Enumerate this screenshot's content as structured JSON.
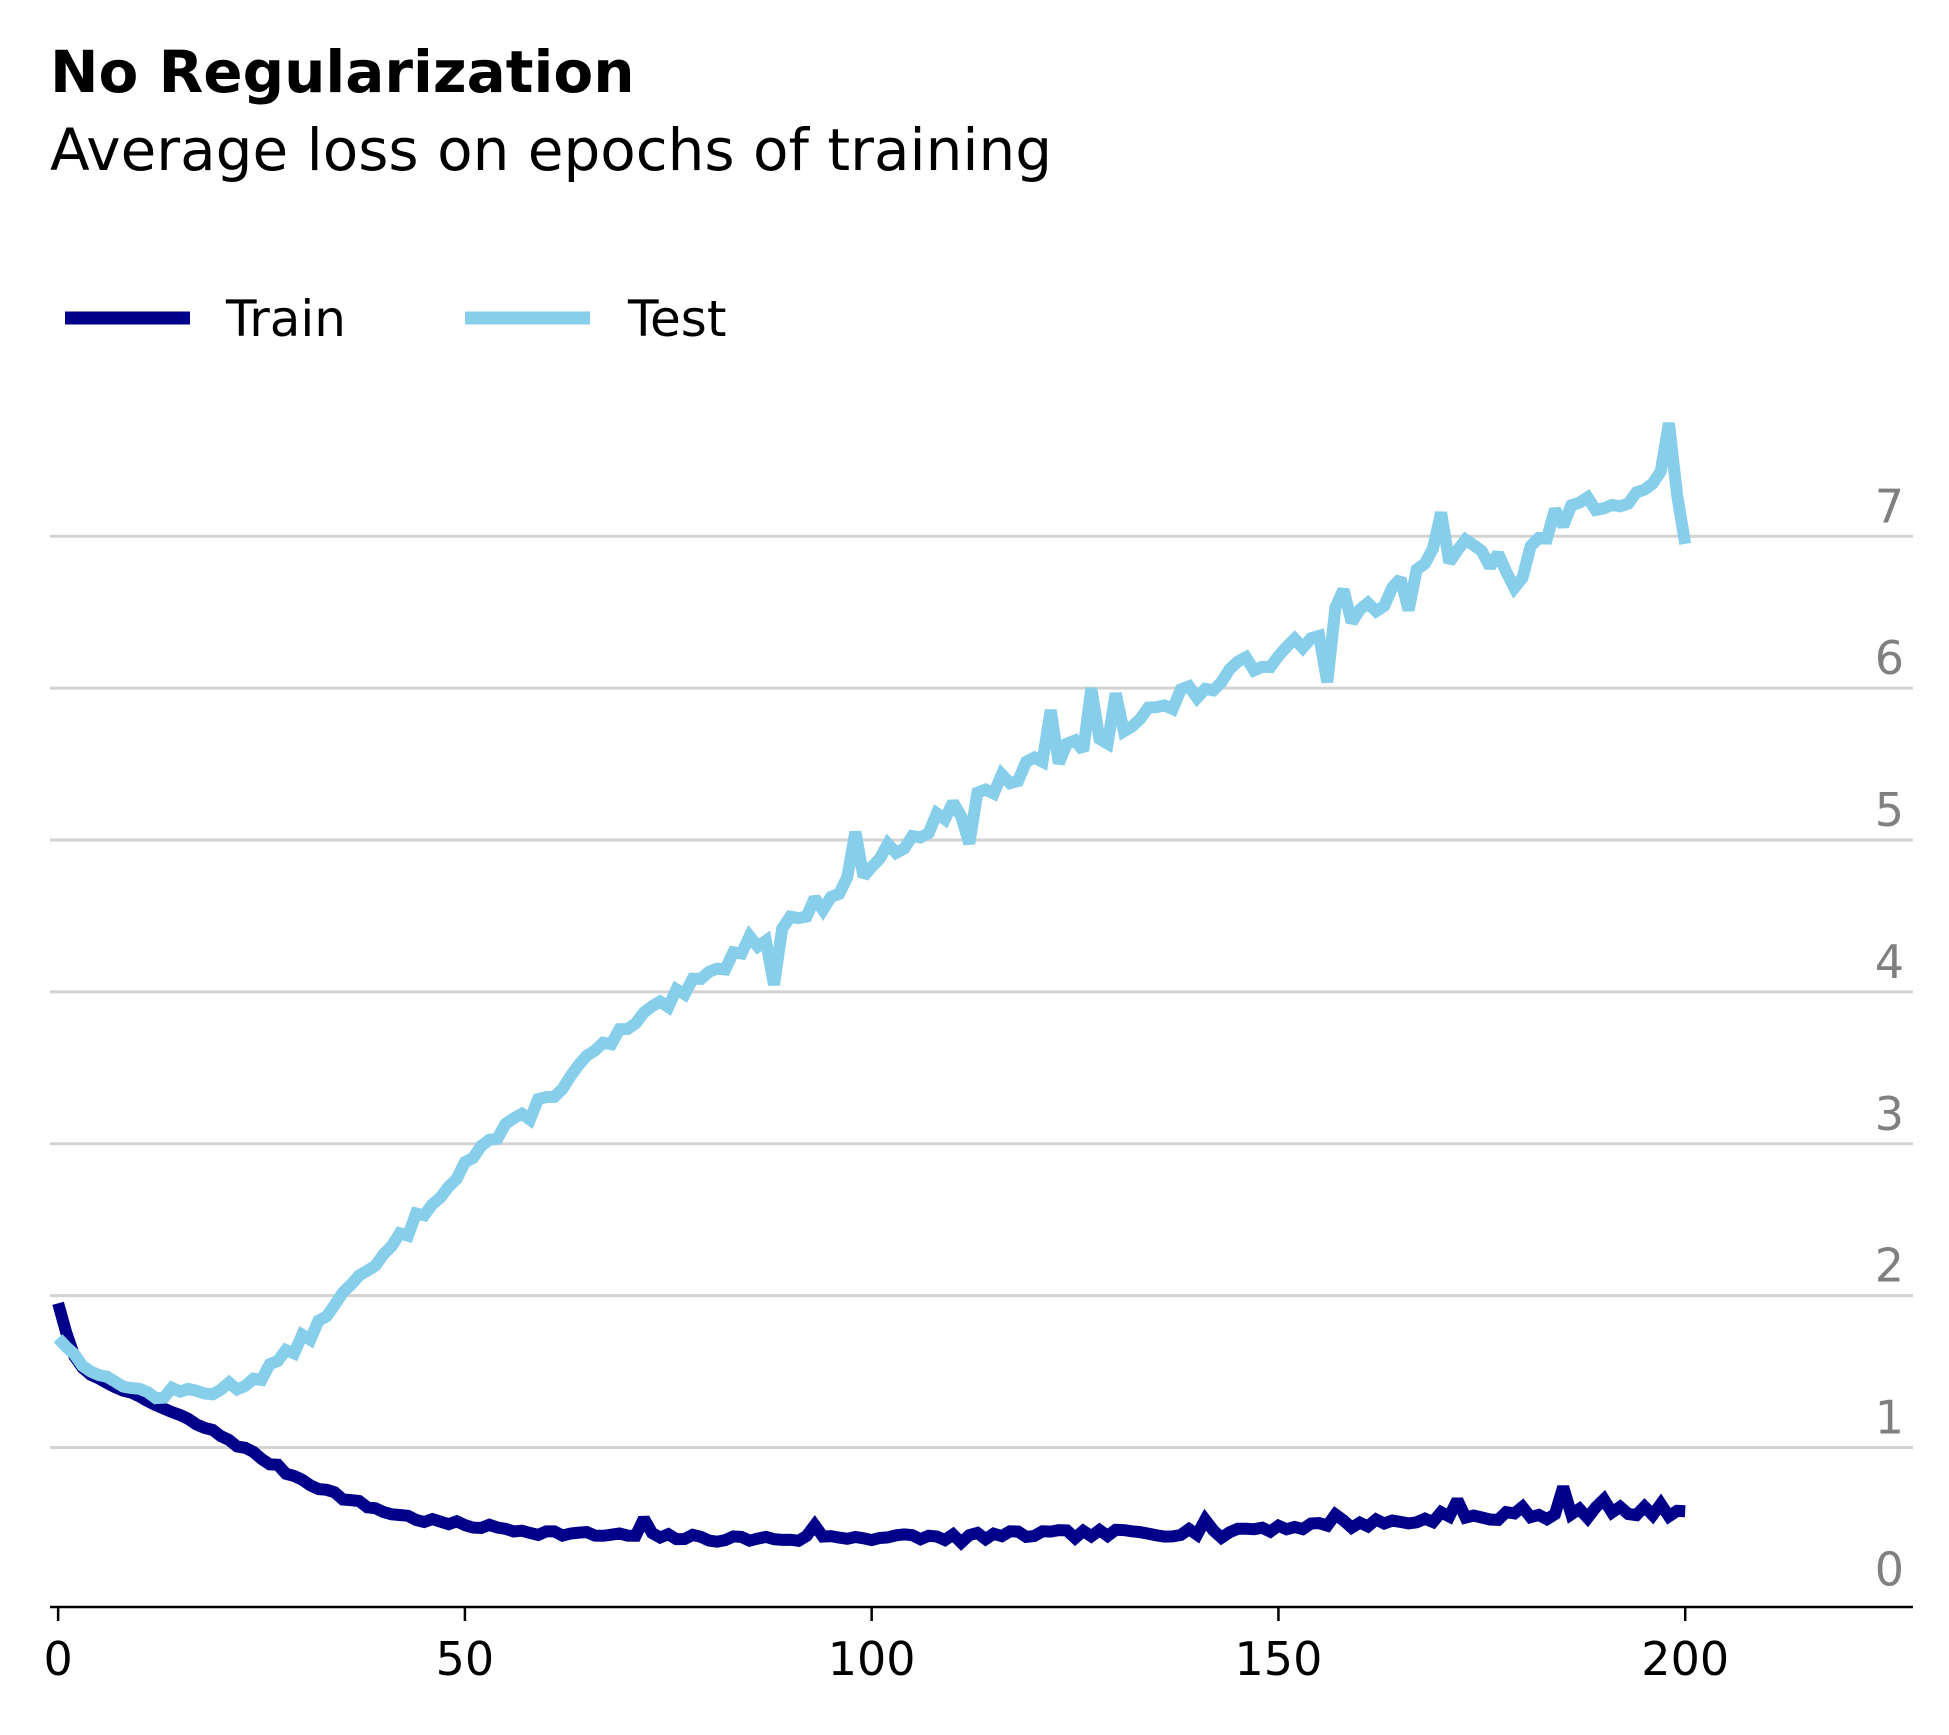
{
  "chart_data": {
    "type": "line",
    "title": "No Regularization",
    "subtitle": "Average loss on epochs of training",
    "xlabel": "",
    "ylabel": "",
    "xlim": [
      -1,
      228
    ],
    "ylim": [
      -0.05,
      7.7
    ],
    "x_ticks": [
      "0",
      "50",
      "100",
      "150",
      "200"
    ],
    "y_ticks": [
      "0",
      "1",
      "2",
      "3",
      "4",
      "5",
      "6",
      "7"
    ],
    "grid": "horizontal",
    "y_axis_labels_side": "right",
    "legend_position": "top-left",
    "series": [
      {
        "name": "Train",
        "color": "#00008b",
        "anchors": [
          [
            0,
            1.95
          ],
          [
            1,
            1.75
          ],
          [
            2,
            1.6
          ],
          [
            3,
            1.52
          ],
          [
            5,
            1.45
          ],
          [
            8,
            1.38
          ],
          [
            12,
            1.28
          ],
          [
            16,
            1.18
          ],
          [
            20,
            1.08
          ],
          [
            24,
            0.96
          ],
          [
            28,
            0.84
          ],
          [
            32,
            0.74
          ],
          [
            36,
            0.65
          ],
          [
            40,
            0.58
          ],
          [
            44,
            0.53
          ],
          [
            48,
            0.5
          ],
          [
            52,
            0.48
          ],
          [
            56,
            0.46
          ],
          [
            60,
            0.44
          ],
          [
            64,
            0.43
          ],
          [
            68,
            0.42
          ],
          [
            72,
            0.42
          ],
          [
            76,
            0.41
          ],
          [
            80,
            0.4
          ],
          [
            84,
            0.4
          ],
          [
            88,
            0.4
          ],
          [
            92,
            0.4
          ],
          [
            96,
            0.41
          ],
          [
            100,
            0.41
          ],
          [
            104,
            0.41
          ],
          [
            108,
            0.41
          ],
          [
            112,
            0.42
          ],
          [
            116,
            0.42
          ],
          [
            120,
            0.43
          ],
          [
            124,
            0.43
          ],
          [
            128,
            0.43
          ],
          [
            132,
            0.44
          ],
          [
            136,
            0.44
          ],
          [
            140,
            0.45
          ],
          [
            144,
            0.46
          ],
          [
            148,
            0.47
          ],
          [
            152,
            0.48
          ],
          [
            156,
            0.49
          ],
          [
            160,
            0.5
          ],
          [
            164,
            0.51
          ],
          [
            168,
            0.52
          ],
          [
            172,
            0.53
          ],
          [
            176,
            0.54
          ],
          [
            180,
            0.55
          ],
          [
            184,
            0.56
          ],
          [
            188,
            0.57
          ],
          [
            192,
            0.58
          ],
          [
            196,
            0.58
          ],
          [
            200,
            0.58
          ]
        ],
        "noise": 0.035,
        "seed": 7,
        "events": [
          [
            72,
            0.1
          ],
          [
            93,
            0.1
          ],
          [
            111,
            -0.06
          ],
          [
            141,
            0.08
          ],
          [
            143,
            -0.08
          ],
          [
            157,
            0.09
          ],
          [
            170,
            0.08
          ],
          [
            172,
            0.12
          ],
          [
            180,
            0.09
          ],
          [
            185,
            0.15
          ],
          [
            190,
            0.1
          ],
          [
            197,
            0.06
          ]
        ]
      },
      {
        "name": "Test",
        "color": "#87ceeb",
        "anchors": [
          [
            0,
            1.72
          ],
          [
            3,
            1.55
          ],
          [
            6,
            1.45
          ],
          [
            10,
            1.38
          ],
          [
            12,
            1.34
          ],
          [
            16,
            1.37
          ],
          [
            20,
            1.38
          ],
          [
            24,
            1.45
          ],
          [
            28,
            1.6
          ],
          [
            32,
            1.8
          ],
          [
            34,
            1.97
          ],
          [
            36,
            2.05
          ],
          [
            40,
            2.25
          ],
          [
            44,
            2.5
          ],
          [
            48,
            2.75
          ],
          [
            52,
            2.98
          ],
          [
            56,
            3.12
          ],
          [
            60,
            3.3
          ],
          [
            64,
            3.5
          ],
          [
            68,
            3.68
          ],
          [
            72,
            3.82
          ],
          [
            76,
            3.96
          ],
          [
            80,
            4.1
          ],
          [
            84,
            4.3
          ],
          [
            88,
            4.4
          ],
          [
            92,
            4.52
          ],
          [
            96,
            4.68
          ],
          [
            100,
            4.84
          ],
          [
            104,
            5.0
          ],
          [
            108,
            5.12
          ],
          [
            112,
            5.25
          ],
          [
            116,
            5.38
          ],
          [
            120,
            5.48
          ],
          [
            124,
            5.58
          ],
          [
            128,
            5.68
          ],
          [
            132,
            5.78
          ],
          [
            136,
            5.88
          ],
          [
            140,
            5.98
          ],
          [
            144,
            6.08
          ],
          [
            148,
            6.18
          ],
          [
            152,
            6.3
          ],
          [
            156,
            6.45
          ],
          [
            160,
            6.52
          ],
          [
            164,
            6.6
          ],
          [
            168,
            6.82
          ],
          [
            172,
            6.92
          ],
          [
            176,
            6.85
          ],
          [
            180,
            6.8
          ],
          [
            184,
            7.1
          ],
          [
            188,
            7.2
          ],
          [
            192,
            7.28
          ],
          [
            196,
            7.32
          ],
          [
            198,
            7.5
          ],
          [
            200,
            6.95
          ]
        ],
        "noise": 0.09,
        "seed": 13,
        "events": [
          [
            88,
            -0.3
          ],
          [
            98,
            0.28
          ],
          [
            112,
            -0.28
          ],
          [
            122,
            0.3
          ],
          [
            127,
            0.35
          ],
          [
            130,
            0.25
          ],
          [
            156,
            -0.35
          ],
          [
            158,
            0.15
          ],
          [
            166,
            -0.25
          ],
          [
            170,
            0.3
          ],
          [
            179,
            -0.2
          ],
          [
            198,
            0.25
          ]
        ]
      }
    ]
  },
  "legend": {
    "items": [
      {
        "label": "Train",
        "color": "#00008b"
      },
      {
        "label": "Test",
        "color": "#87ceeb"
      }
    ]
  },
  "colors": {
    "grid": "#d3d3d3",
    "axis": "#000000",
    "ytick": "#808080"
  }
}
